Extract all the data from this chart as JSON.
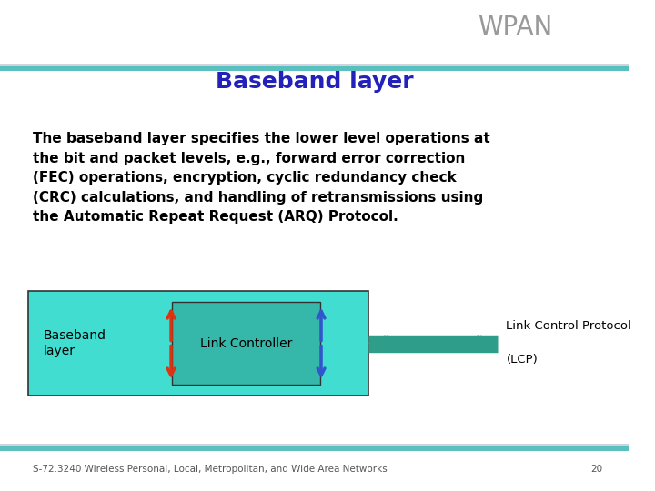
{
  "title": "WPAN",
  "slide_title": "Baseband layer",
  "body_text": "The baseband layer specifies the lower level operations at\nthe bit and packet levels, e.g., forward error correction\n(FEC) operations, encryption, cyclic redundancy check\n(CRC) calculations, and handling of retransmissions using\nthe Automatic Repeat Request (ARQ) Protocol.",
  "footer_text": "S-72.3240 Wireless Personal, Local, Metropolitan, and Wide Area Networks",
  "footer_page": "20",
  "top_bar_color_teal": "#5abfbf",
  "top_bar_color_gray": "#9eaab8",
  "title_color": "#999999",
  "slide_title_color": "#2222bb",
  "body_text_color": "#000000",
  "bg_color": "#ffffff",
  "diagram": {
    "baseband_box_color": "#40ddd0",
    "baseband_label": "Baseband\nlayer",
    "link_ctrl_box_color": "#35b8aa",
    "link_ctrl_label": "Link Controller",
    "arrow_color": "#2e9e8a",
    "red_arrow_color": "#dd3311",
    "blue_arrow_color": "#3355cc",
    "lcp_line1": "Link Control Protocol",
    "lcp_line2": "(LCP)"
  }
}
